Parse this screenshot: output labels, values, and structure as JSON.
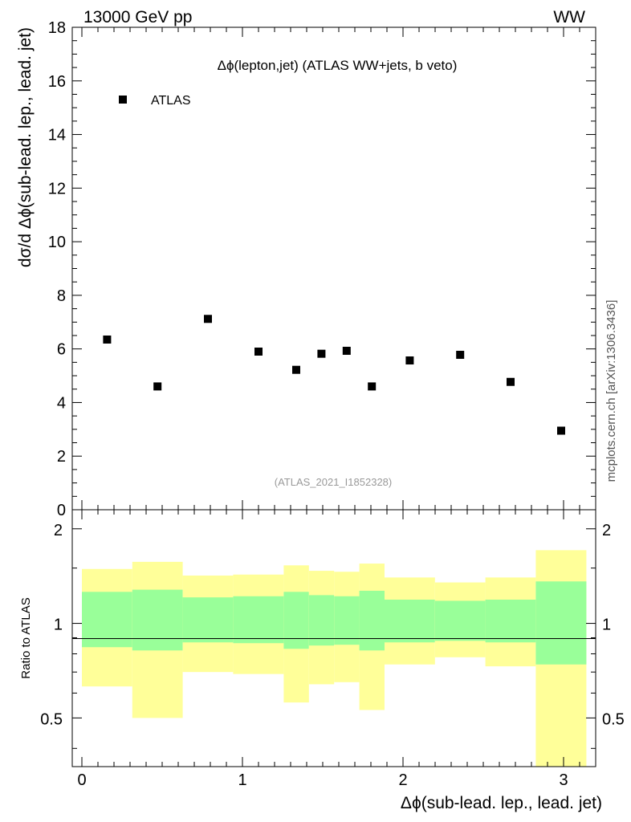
{
  "header": {
    "left": "13000 GeV pp",
    "right": "WW"
  },
  "side_label": "mcplots.cern.ch [arXiv:1306.3436]",
  "chart_data": [
    {
      "type": "scatter",
      "title": "Δϕ(lepton,jet) (ATLAS WW+jets, b veto)",
      "watermark": "(ATLAS_2021_I1852328)",
      "ylabel": "dσ/d Δϕ(sub-lead. lep., lead. jet)",
      "ylim": [
        0,
        18
      ],
      "yticks": [
        0,
        2,
        4,
        6,
        8,
        10,
        12,
        14,
        16,
        18
      ],
      "legend_position": "top-left",
      "series": [
        {
          "name": "ATLAS",
          "color": "#000000",
          "x": [
            0.157,
            0.471,
            0.785,
            1.1,
            1.335,
            1.492,
            1.649,
            1.806,
            2.042,
            2.356,
            2.67,
            2.985
          ],
          "y": [
            6.35,
            4.6,
            7.12,
            5.9,
            5.22,
            5.82,
            5.93,
            4.6,
            5.57,
            5.78,
            4.77,
            2.95
          ]
        }
      ]
    },
    {
      "type": "area",
      "ylabel": "Ratio to ATLAS",
      "xlabel": "Δϕ(sub-lead. lep., lead. jet)",
      "xlim": [
        -0.06,
        3.2
      ],
      "ylim": [
        0.35,
        2.3
      ],
      "xticks": [
        0,
        1,
        2,
        3
      ],
      "yticks": [
        0.5,
        1,
        2
      ],
      "reference_line": 1,
      "bands": {
        "bin_edges": [
          0,
          0.314,
          0.628,
          0.942,
          1.257,
          1.414,
          1.571,
          1.728,
          1.885,
          2.199,
          2.513,
          2.827,
          3.142
        ],
        "inner_color": "#99ff99",
        "outer_color": "#ffff99",
        "inner_low": [
          0.84,
          0.82,
          0.87,
          0.865,
          0.83,
          0.85,
          0.855,
          0.82,
          0.87,
          0.88,
          0.87,
          0.74
        ],
        "inner_high": [
          1.26,
          1.28,
          1.21,
          1.22,
          1.26,
          1.23,
          1.22,
          1.27,
          1.19,
          1.18,
          1.19,
          1.36
        ],
        "outer_low": [
          0.63,
          0.5,
          0.7,
          0.69,
          0.56,
          0.64,
          0.65,
          0.53,
          0.74,
          0.78,
          0.73,
          0.35
        ],
        "outer_high": [
          1.49,
          1.57,
          1.42,
          1.43,
          1.53,
          1.47,
          1.46,
          1.55,
          1.4,
          1.35,
          1.4,
          1.71
        ]
      }
    }
  ]
}
